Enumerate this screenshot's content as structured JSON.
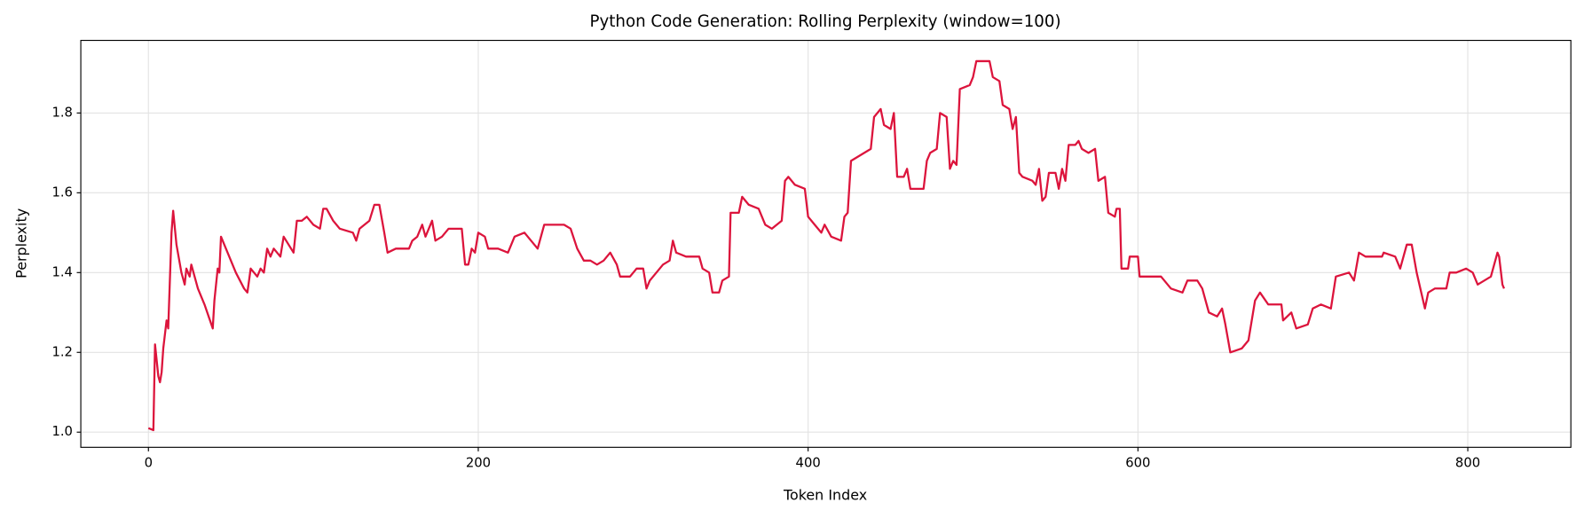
{
  "chart_data": {
    "type": "line",
    "title": "Python Code Generation: Rolling Perplexity (window=100)",
    "x_label": "Token Index",
    "y_label": "Perplexity",
    "x": [
      0,
      3,
      4,
      6,
      7,
      8,
      9,
      11,
      12,
      14,
      15,
      17,
      20,
      22,
      23,
      25,
      26,
      30,
      34,
      39,
      40,
      42,
      43,
      44,
      48,
      53,
      58,
      60,
      62,
      64,
      66,
      68,
      70,
      72,
      74,
      76,
      80,
      82,
      88,
      90,
      93,
      96,
      100,
      104,
      106,
      108,
      112,
      116,
      124,
      126,
      128,
      134,
      137,
      140,
      143,
      145,
      150,
      158,
      160,
      163,
      166,
      168,
      172,
      174,
      178,
      182,
      190,
      192,
      194,
      196,
      198,
      200,
      204,
      206,
      212,
      218,
      222,
      228,
      232,
      236,
      240,
      246,
      252,
      256,
      260,
      264,
      268,
      272,
      276,
      280,
      284,
      286,
      292,
      296,
      300,
      302,
      304,
      308,
      312,
      316,
      318,
      320,
      326,
      334,
      336,
      340,
      342,
      346,
      348,
      352,
      353,
      358,
      360,
      364,
      370,
      374,
      378,
      384,
      386,
      388,
      392,
      398,
      400,
      404,
      408,
      410,
      414,
      420,
      422,
      424,
      426,
      430,
      434,
      438,
      440,
      442,
      444,
      446,
      450,
      452,
      454,
      458,
      460,
      462,
      466,
      470,
      472,
      474,
      478,
      480,
      484,
      486,
      488,
      490,
      492,
      498,
      500,
      502,
      510,
      512,
      516,
      518,
      522,
      524,
      526,
      528,
      530,
      536,
      538,
      540,
      542,
      544,
      546,
      550,
      552,
      554,
      556,
      558,
      562,
      564,
      566,
      570,
      574,
      576,
      580,
      582,
      586,
      587,
      589,
      590,
      594,
      595,
      600,
      601,
      614,
      620,
      627,
      630,
      636,
      639,
      643,
      648,
      651,
      653,
      656,
      663,
      667,
      671,
      674,
      679,
      687,
      688,
      693,
      696,
      703,
      706,
      711,
      717,
      720,
      728,
      731,
      734,
      738,
      748,
      749,
      756,
      759,
      763,
      766,
      769,
      774,
      776,
      780,
      787,
      789,
      793,
      799,
      803,
      806,
      810,
      814,
      818,
      819,
      821,
      822
    ],
    "values": [
      1.01,
      1.005,
      1.22,
      1.14,
      1.125,
      1.15,
      1.21,
      1.28,
      1.26,
      1.5,
      1.555,
      1.47,
      1.4,
      1.37,
      1.41,
      1.39,
      1.42,
      1.36,
      1.32,
      1.26,
      1.33,
      1.41,
      1.4,
      1.49,
      1.45,
      1.4,
      1.36,
      1.35,
      1.41,
      1.4,
      1.39,
      1.41,
      1.4,
      1.46,
      1.44,
      1.46,
      1.44,
      1.49,
      1.45,
      1.53,
      1.53,
      1.54,
      1.52,
      1.51,
      1.56,
      1.56,
      1.53,
      1.51,
      1.5,
      1.48,
      1.51,
      1.53,
      1.57,
      1.57,
      1.5,
      1.45,
      1.46,
      1.46,
      1.48,
      1.49,
      1.52,
      1.49,
      1.53,
      1.48,
      1.49,
      1.51,
      1.51,
      1.42,
      1.42,
      1.46,
      1.45,
      1.5,
      1.49,
      1.46,
      1.46,
      1.45,
      1.49,
      1.5,
      1.48,
      1.46,
      1.52,
      1.52,
      1.52,
      1.51,
      1.46,
      1.43,
      1.43,
      1.42,
      1.43,
      1.45,
      1.42,
      1.39,
      1.39,
      1.41,
      1.41,
      1.36,
      1.38,
      1.4,
      1.42,
      1.43,
      1.48,
      1.45,
      1.44,
      1.44,
      1.41,
      1.4,
      1.35,
      1.35,
      1.38,
      1.39,
      1.55,
      1.55,
      1.59,
      1.57,
      1.56,
      1.52,
      1.51,
      1.53,
      1.63,
      1.64,
      1.62,
      1.61,
      1.54,
      1.52,
      1.5,
      1.52,
      1.49,
      1.48,
      1.54,
      1.55,
      1.68,
      1.69,
      1.7,
      1.71,
      1.79,
      1.8,
      1.81,
      1.77,
      1.76,
      1.8,
      1.64,
      1.64,
      1.66,
      1.61,
      1.61,
      1.61,
      1.68,
      1.7,
      1.71,
      1.8,
      1.79,
      1.66,
      1.68,
      1.67,
      1.86,
      1.87,
      1.89,
      1.93,
      1.93,
      1.89,
      1.88,
      1.82,
      1.81,
      1.76,
      1.79,
      1.65,
      1.64,
      1.63,
      1.62,
      1.66,
      1.58,
      1.59,
      1.65,
      1.65,
      1.61,
      1.66,
      1.63,
      1.72,
      1.72,
      1.73,
      1.71,
      1.7,
      1.71,
      1.63,
      1.64,
      1.55,
      1.54,
      1.56,
      1.56,
      1.41,
      1.41,
      1.44,
      1.44,
      1.39,
      1.39,
      1.36,
      1.35,
      1.38,
      1.38,
      1.36,
      1.3,
      1.29,
      1.31,
      1.27,
      1.2,
      1.21,
      1.23,
      1.33,
      1.35,
      1.32,
      1.32,
      1.28,
      1.3,
      1.26,
      1.27,
      1.31,
      1.32,
      1.31,
      1.39,
      1.4,
      1.38,
      1.45,
      1.44,
      1.44,
      1.45,
      1.44,
      1.41,
      1.47,
      1.47,
      1.4,
      1.31,
      1.35,
      1.36,
      1.36,
      1.4,
      1.4,
      1.41,
      1.4,
      1.37,
      1.38,
      1.39,
      1.45,
      1.44,
      1.37,
      1.36
    ],
    "color": "#dc143c",
    "xlim": [
      -41,
      862.5
    ],
    "ylim": [
      0.962,
      1.982
    ],
    "xticks": [
      0,
      200,
      400,
      600,
      800
    ],
    "yticks": [
      {
        "value": 1,
        "label": "1.0"
      },
      1.2,
      1.4,
      1.6,
      1.8
    ],
    "grid": true
  }
}
